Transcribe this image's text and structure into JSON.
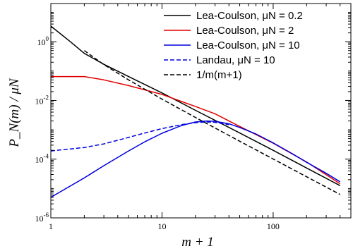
{
  "chart_data": {
    "type": "line",
    "xlabel": "m + 1",
    "ylabel": "P_N(m) / μN",
    "xscale": "log",
    "yscale": "log",
    "xlim": [
      1,
      500
    ],
    "ylim": [
      1e-06,
      20
    ],
    "x_ticks": [
      {
        "value": 1,
        "label": "1"
      },
      {
        "value": 10,
        "label": "10"
      },
      {
        "value": 100,
        "label": "100"
      }
    ],
    "y_ticks": [
      {
        "value": 1,
        "base": "10",
        "exp": "0"
      },
      {
        "value": 0.01,
        "base": "10",
        "exp": "-2"
      },
      {
        "value": 0.0001,
        "base": "10",
        "exp": "-4"
      },
      {
        "value": 1e-06,
        "base": "10",
        "exp": "-6"
      }
    ],
    "legend_position": "top-right",
    "series": [
      {
        "name": "Lea-Coulson, μN = 0.2",
        "color": "#000000",
        "dash": "solid",
        "x": [
          1,
          1.5,
          2,
          3,
          5,
          10,
          20,
          50,
          100,
          200,
          400
        ],
        "y": [
          3.4,
          1.0,
          0.4,
          0.17,
          0.065,
          0.018,
          0.0046,
          0.00078,
          0.0002,
          5e-05,
          1.25e-05
        ]
      },
      {
        "name": "Lea-Coulson, μN = 2",
        "color": "#e00000",
        "dash": "solid",
        "x": [
          1,
          2,
          3,
          5,
          10,
          20,
          30,
          50,
          100,
          200,
          400
        ],
        "y": [
          0.065,
          0.065,
          0.05,
          0.032,
          0.016,
          0.0062,
          0.0035,
          0.0013,
          0.00035,
          8e-05,
          1.45e-05
        ]
      },
      {
        "name": "Lea-Coulson, μN = 10",
        "color": "#0000dd",
        "dash": "solid",
        "x": [
          1,
          2,
          3,
          5,
          7,
          10,
          15,
          20,
          25,
          30,
          40,
          50,
          70,
          100,
          150,
          200,
          300,
          400
        ],
        "y": [
          5e-06,
          2.3e-05,
          6e-05,
          0.00019,
          0.00039,
          0.00076,
          0.0014,
          0.00185,
          0.002,
          0.00195,
          0.0016,
          0.0012,
          0.00072,
          0.00036,
          0.00015,
          7.8e-05,
          3.3e-05,
          1.7e-05
        ]
      },
      {
        "name": "Landau, μN = 10",
        "color": "#0000dd",
        "dash": "dashed",
        "x": [
          1,
          2,
          3,
          5,
          7,
          10,
          15,
          20,
          25,
          30,
          40
        ],
        "y": [
          0.00019,
          0.00025,
          0.00033,
          0.00055,
          0.00078,
          0.0011,
          0.0015,
          0.00175,
          0.00185,
          0.0018,
          0.0015
        ]
      },
      {
        "name": "1/m(m+1)",
        "color": "#000000",
        "dash": "dashed",
        "x": [
          2,
          3,
          5,
          10,
          20,
          50,
          100,
          200,
          400
        ],
        "y": [
          0.5,
          0.1667,
          0.05,
          0.0111,
          0.00263,
          0.000408,
          0.000101,
          2.51e-05,
          6.27e-06
        ]
      }
    ]
  }
}
